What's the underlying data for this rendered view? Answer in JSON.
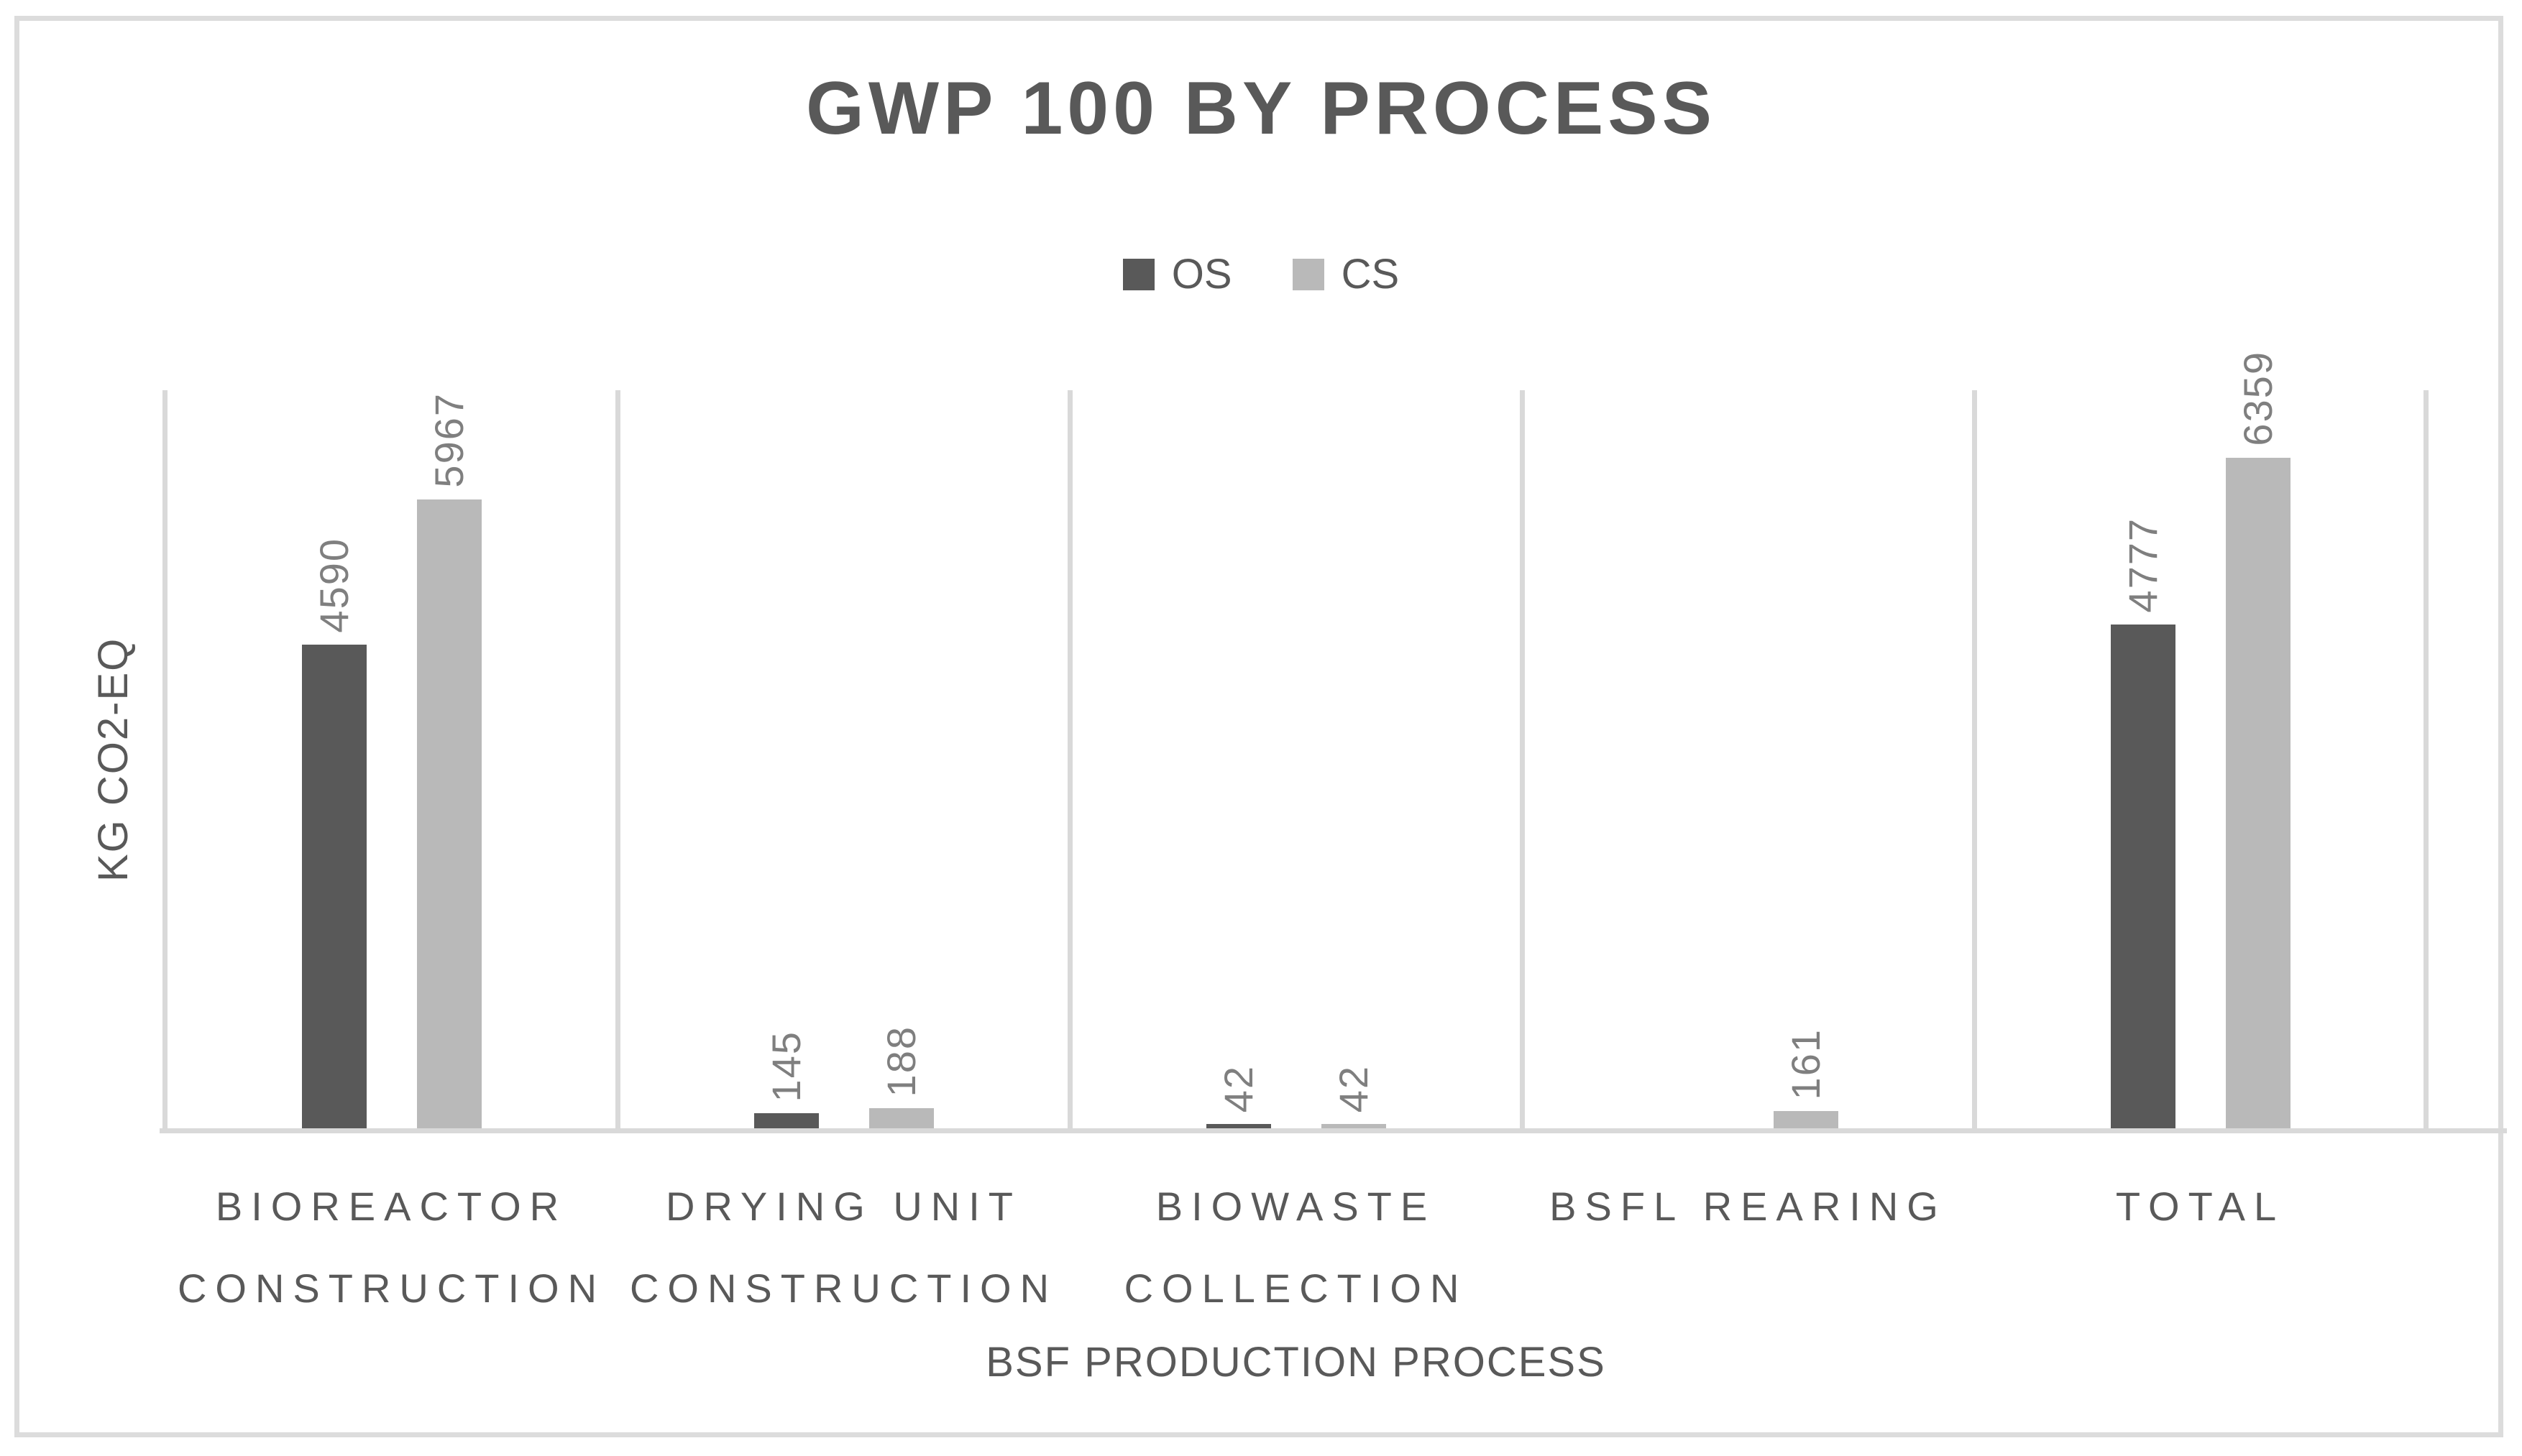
{
  "chart_data": {
    "type": "bar",
    "title": "GWP 100 BY PROCESS",
    "xlabel": "BSF PRODUCTION PROCESS",
    "ylabel": "KG CO2-EQ",
    "ylim": [
      0,
      7000
    ],
    "grid": "vertical-category-separators-only",
    "legend_position": "top-center",
    "bar_label_rotation_degrees": 90,
    "y_tick_labels_visible": false,
    "categories": [
      "BIOREACTOR CONSTRUCTION",
      "DRYING UNIT CONSTRUCTION",
      "BIOWASTE COLLECTION",
      "BSFL REARING",
      "TOTAL"
    ],
    "series": [
      {
        "name": "OS",
        "color": "#595959",
        "values": [
          4590,
          145,
          42,
          0,
          4777
        ]
      },
      {
        "name": "CS",
        "color": "#b9b9b9",
        "values": [
          5967,
          188,
          42,
          161,
          6359
        ]
      }
    ]
  },
  "colors": {
    "frame_border": "#dcdcdc",
    "axis_line": "#d9d9d9",
    "heading_text": "#595959",
    "data_label_text": "#7f7f7f",
    "background": "#ffffff"
  }
}
